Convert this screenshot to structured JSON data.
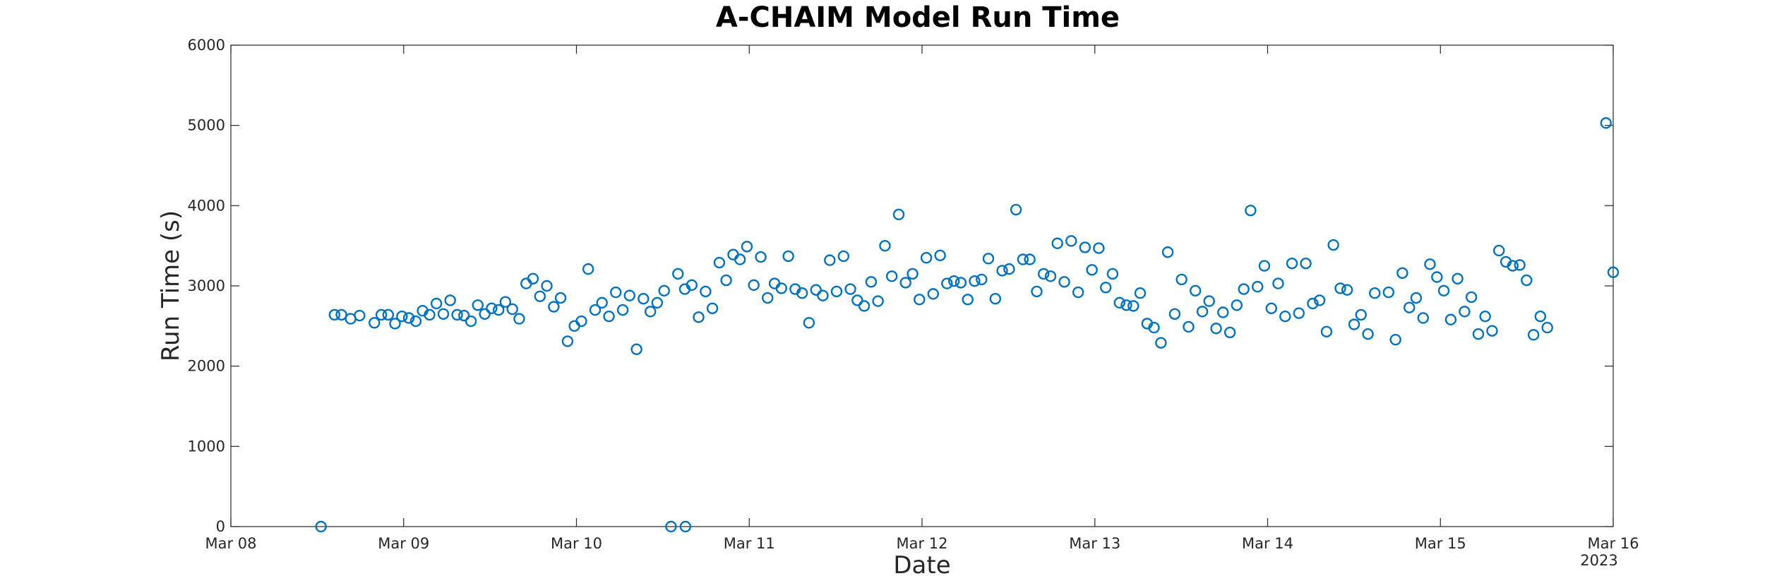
{
  "chart_data": {
    "type": "scatter",
    "title": "A-CHAIM Model Run Time",
    "xlabel": "Date",
    "ylabel": "Run Time (s)",
    "x_year_label": "2023",
    "xlim": [
      "2023-03-08T00:00",
      "2023-03-16T00:00"
    ],
    "ylim": [
      0,
      6000
    ],
    "yticks": [
      0,
      1000,
      2000,
      3000,
      4000,
      5000,
      6000
    ],
    "xticks": [
      {
        "date": "2023-03-08",
        "label": "Mar 08"
      },
      {
        "date": "2023-03-09",
        "label": "Mar 09"
      },
      {
        "date": "2023-03-10",
        "label": "Mar 10"
      },
      {
        "date": "2023-03-11",
        "label": "Mar 11"
      },
      {
        "date": "2023-03-12",
        "label": "Mar 12"
      },
      {
        "date": "2023-03-13",
        "label": "Mar 13"
      },
      {
        "date": "2023-03-14",
        "label": "Mar 14"
      },
      {
        "date": "2023-03-15",
        "label": "Mar 15"
      },
      {
        "date": "2023-03-16",
        "label": "Mar 16"
      }
    ],
    "grid": false,
    "marker_color": "#0072BD",
    "series": [
      {
        "points": [
          [
            "2023-03-08T12:31",
            0
          ],
          [
            "2023-03-08T14:24",
            2640
          ],
          [
            "2023-03-08T15:21",
            2640
          ],
          [
            "2023-03-08T16:38",
            2590
          ],
          [
            "2023-03-08T17:53",
            2630
          ],
          [
            "2023-03-08T19:56",
            2540
          ],
          [
            "2023-03-08T20:54",
            2640
          ],
          [
            "2023-03-08T21:51",
            2640
          ],
          [
            "2023-03-08T22:48",
            2530
          ],
          [
            "2023-03-08T23:46",
            2620
          ],
          [
            "2023-03-09T00:43",
            2600
          ],
          [
            "2023-03-09T01:41",
            2560
          ],
          [
            "2023-03-09T02:38",
            2690
          ],
          [
            "2023-03-09T03:36",
            2640
          ],
          [
            "2023-03-09T04:33",
            2780
          ],
          [
            "2023-03-09T05:31",
            2650
          ],
          [
            "2023-03-09T06:28",
            2820
          ],
          [
            "2023-03-09T07:26",
            2640
          ],
          [
            "2023-03-09T08:23",
            2630
          ],
          [
            "2023-03-09T09:21",
            2560
          ],
          [
            "2023-03-09T10:18",
            2760
          ],
          [
            "2023-03-09T11:16",
            2650
          ],
          [
            "2023-03-09T12:13",
            2720
          ],
          [
            "2023-03-09T13:11",
            2700
          ],
          [
            "2023-03-09T14:08",
            2800
          ],
          [
            "2023-03-09T15:06",
            2710
          ],
          [
            "2023-03-09T16:03",
            2590
          ],
          [
            "2023-03-09T17:01",
            3030
          ],
          [
            "2023-03-09T17:58",
            3090
          ],
          [
            "2023-03-09T18:56",
            2870
          ],
          [
            "2023-03-09T19:53",
            3000
          ],
          [
            "2023-03-09T20:51",
            2740
          ],
          [
            "2023-03-09T21:48",
            2850
          ],
          [
            "2023-03-09T22:46",
            2310
          ],
          [
            "2023-03-09T23:43",
            2500
          ],
          [
            "2023-03-10T00:41",
            2560
          ],
          [
            "2023-03-10T01:38",
            3210
          ],
          [
            "2023-03-10T02:36",
            2700
          ],
          [
            "2023-03-10T03:33",
            2790
          ],
          [
            "2023-03-10T04:31",
            2620
          ],
          [
            "2023-03-10T05:28",
            2920
          ],
          [
            "2023-03-10T06:26",
            2700
          ],
          [
            "2023-03-10T07:23",
            2880
          ],
          [
            "2023-03-10T08:21",
            2210
          ],
          [
            "2023-03-10T09:18",
            2840
          ],
          [
            "2023-03-10T10:16",
            2680
          ],
          [
            "2023-03-10T11:13",
            2790
          ],
          [
            "2023-03-10T12:11",
            2940
          ],
          [
            "2023-03-10T13:08",
            0
          ],
          [
            "2023-03-10T14:06",
            3150
          ],
          [
            "2023-03-10T15:03",
            2960
          ],
          [
            "2023-03-10T15:08",
            0
          ],
          [
            "2023-03-10T16:01",
            3010
          ],
          [
            "2023-03-10T16:58",
            2610
          ],
          [
            "2023-03-10T17:56",
            2930
          ],
          [
            "2023-03-10T18:53",
            2720
          ],
          [
            "2023-03-10T19:51",
            3290
          ],
          [
            "2023-03-10T20:48",
            3070
          ],
          [
            "2023-03-10T21:46",
            3390
          ],
          [
            "2023-03-10T22:43",
            3330
          ],
          [
            "2023-03-10T23:41",
            3490
          ],
          [
            "2023-03-11T00:38",
            3010
          ],
          [
            "2023-03-11T01:36",
            3360
          ],
          [
            "2023-03-11T02:33",
            2850
          ],
          [
            "2023-03-11T03:31",
            3030
          ],
          [
            "2023-03-11T04:28",
            2970
          ],
          [
            "2023-03-11T05:26",
            3370
          ],
          [
            "2023-03-11T06:23",
            2960
          ],
          [
            "2023-03-11T07:21",
            2910
          ],
          [
            "2023-03-11T08:18",
            2540
          ],
          [
            "2023-03-11T09:16",
            2950
          ],
          [
            "2023-03-11T10:13",
            2880
          ],
          [
            "2023-03-11T11:11",
            3320
          ],
          [
            "2023-03-11T12:08",
            2930
          ],
          [
            "2023-03-11T13:06",
            3370
          ],
          [
            "2023-03-11T14:03",
            2960
          ],
          [
            "2023-03-11T15:01",
            2820
          ],
          [
            "2023-03-11T15:58",
            2750
          ],
          [
            "2023-03-11T16:56",
            3050
          ],
          [
            "2023-03-11T17:53",
            2810
          ],
          [
            "2023-03-11T18:51",
            3500
          ],
          [
            "2023-03-11T19:48",
            3120
          ],
          [
            "2023-03-11T20:46",
            3890
          ],
          [
            "2023-03-11T21:43",
            3040
          ],
          [
            "2023-03-11T22:41",
            3150
          ],
          [
            "2023-03-11T23:38",
            2830
          ],
          [
            "2023-03-12T00:36",
            3350
          ],
          [
            "2023-03-12T01:33",
            2900
          ],
          [
            "2023-03-12T02:31",
            3380
          ],
          [
            "2023-03-12T03:28",
            3030
          ],
          [
            "2023-03-12T04:26",
            3060
          ],
          [
            "2023-03-12T05:23",
            3040
          ],
          [
            "2023-03-12T06:21",
            2830
          ],
          [
            "2023-03-12T07:18",
            3060
          ],
          [
            "2023-03-12T08:16",
            3080
          ],
          [
            "2023-03-12T09:13",
            3340
          ],
          [
            "2023-03-12T10:11",
            2840
          ],
          [
            "2023-03-12T11:08",
            3190
          ],
          [
            "2023-03-12T12:06",
            3210
          ],
          [
            "2023-03-12T13:03",
            3950
          ],
          [
            "2023-03-12T14:01",
            3330
          ],
          [
            "2023-03-12T14:58",
            3330
          ],
          [
            "2023-03-12T15:56",
            2930
          ],
          [
            "2023-03-12T16:53",
            3150
          ],
          [
            "2023-03-12T17:51",
            3120
          ],
          [
            "2023-03-12T18:48",
            3530
          ],
          [
            "2023-03-12T19:46",
            3050
          ],
          [
            "2023-03-12T20:43",
            3560
          ],
          [
            "2023-03-12T21:41",
            2920
          ],
          [
            "2023-03-12T22:38",
            3480
          ],
          [
            "2023-03-12T23:36",
            3200
          ],
          [
            "2023-03-13T00:33",
            3470
          ],
          [
            "2023-03-13T01:31",
            2980
          ],
          [
            "2023-03-13T02:28",
            3150
          ],
          [
            "2023-03-13T03:26",
            2790
          ],
          [
            "2023-03-13T04:23",
            2760
          ],
          [
            "2023-03-13T05:21",
            2750
          ],
          [
            "2023-03-13T06:18",
            2910
          ],
          [
            "2023-03-13T07:16",
            2530
          ],
          [
            "2023-03-13T08:13",
            2480
          ],
          [
            "2023-03-13T09:11",
            2290
          ],
          [
            "2023-03-13T10:08",
            3420
          ],
          [
            "2023-03-13T11:06",
            2650
          ],
          [
            "2023-03-13T12:03",
            3080
          ],
          [
            "2023-03-13T13:01",
            2490
          ],
          [
            "2023-03-13T13:58",
            2940
          ],
          [
            "2023-03-13T14:56",
            2680
          ],
          [
            "2023-03-13T15:53",
            2810
          ],
          [
            "2023-03-13T16:51",
            2470
          ],
          [
            "2023-03-13T17:48",
            2670
          ],
          [
            "2023-03-13T18:46",
            2420
          ],
          [
            "2023-03-13T19:43",
            2760
          ],
          [
            "2023-03-13T20:41",
            2960
          ],
          [
            "2023-03-13T21:38",
            3940
          ],
          [
            "2023-03-13T22:36",
            2990
          ],
          [
            "2023-03-13T23:33",
            3250
          ],
          [
            "2023-03-14T00:31",
            2720
          ],
          [
            "2023-03-14T01:28",
            3030
          ],
          [
            "2023-03-14T02:26",
            2620
          ],
          [
            "2023-03-14T03:23",
            3280
          ],
          [
            "2023-03-14T04:21",
            2660
          ],
          [
            "2023-03-14T05:18",
            3280
          ],
          [
            "2023-03-14T06:16",
            2780
          ],
          [
            "2023-03-14T07:13",
            2820
          ],
          [
            "2023-03-14T08:11",
            2430
          ],
          [
            "2023-03-14T09:08",
            3510
          ],
          [
            "2023-03-14T10:06",
            2970
          ],
          [
            "2023-03-14T11:03",
            2950
          ],
          [
            "2023-03-14T12:01",
            2520
          ],
          [
            "2023-03-14T12:58",
            2640
          ],
          [
            "2023-03-14T13:56",
            2400
          ],
          [
            "2023-03-14T14:53",
            2910
          ],
          [
            "2023-03-14T16:48",
            2920
          ],
          [
            "2023-03-14T17:46",
            2330
          ],
          [
            "2023-03-14T18:43",
            3160
          ],
          [
            "2023-03-14T19:41",
            2730
          ],
          [
            "2023-03-14T20:38",
            2850
          ],
          [
            "2023-03-14T21:36",
            2600
          ],
          [
            "2023-03-14T22:33",
            3270
          ],
          [
            "2023-03-14T23:31",
            3110
          ],
          [
            "2023-03-15T00:28",
            2940
          ],
          [
            "2023-03-15T01:26",
            2580
          ],
          [
            "2023-03-15T02:23",
            3090
          ],
          [
            "2023-03-15T03:21",
            2680
          ],
          [
            "2023-03-15T04:18",
            2860
          ],
          [
            "2023-03-15T05:16",
            2400
          ],
          [
            "2023-03-15T06:13",
            2620
          ],
          [
            "2023-03-15T07:11",
            2440
          ],
          [
            "2023-03-15T08:08",
            3440
          ],
          [
            "2023-03-15T09:06",
            3300
          ],
          [
            "2023-03-15T10:03",
            3250
          ],
          [
            "2023-03-15T11:01",
            3260
          ],
          [
            "2023-03-15T11:58",
            3070
          ],
          [
            "2023-03-15T12:56",
            2390
          ],
          [
            "2023-03-15T13:53",
            2620
          ],
          [
            "2023-03-15T14:51",
            2480
          ],
          [
            "2023-03-15T23:00",
            5030
          ],
          [
            "2023-03-16T00:00",
            3170
          ]
        ]
      }
    ]
  }
}
